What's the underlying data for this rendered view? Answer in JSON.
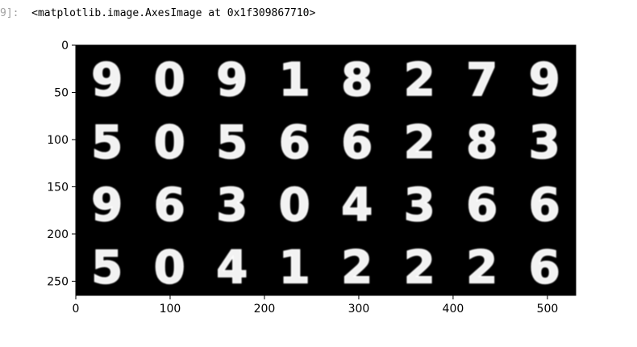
{
  "cell": {
    "prompt": "9]:",
    "output": "<matplotlib.image.AxesImage at 0x1f309867710>"
  },
  "chart_data": {
    "type": "heatmap",
    "description_kind": "image grid",
    "colormap": "gray",
    "background": "#000000",
    "xlim": [
      0,
      530
    ],
    "ylim": [
      265,
      0
    ],
    "xticks": [
      0,
      100,
      200,
      300,
      400,
      500
    ],
    "yticks": [
      0,
      50,
      100,
      150,
      200,
      250
    ],
    "grid": false,
    "rows": 4,
    "cols": 8,
    "digits": [
      [
        "9",
        "0",
        "9",
        "1",
        "8",
        "2",
        "7",
        "9"
      ],
      [
        "5",
        "0",
        "5",
        "6",
        "6",
        "2",
        "8",
        "3"
      ],
      [
        "9",
        "6",
        "3",
        "0",
        "4",
        "3",
        "6",
        "6"
      ],
      [
        "5",
        "0",
        "4",
        "1",
        "2",
        "2",
        "2",
        "6"
      ]
    ]
  }
}
